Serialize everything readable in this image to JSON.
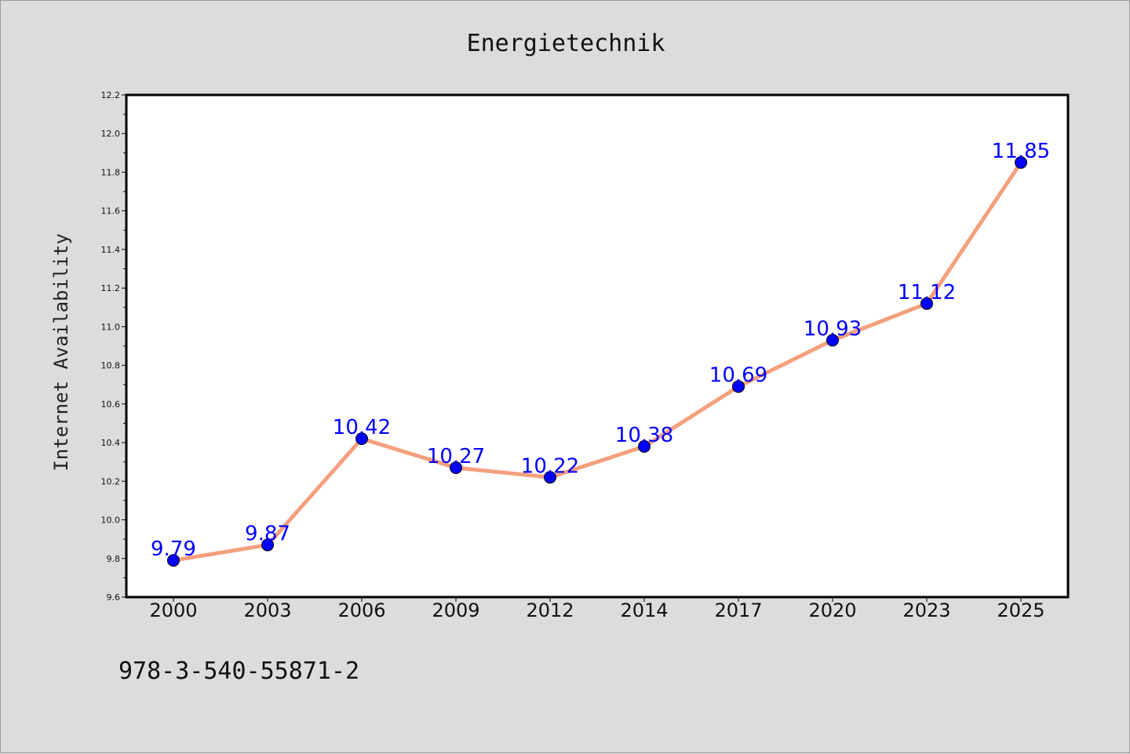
{
  "chart_data": {
    "type": "line",
    "title": "Energietechnik",
    "ylabel": "Internet Availability",
    "xlabel": "",
    "categories": [
      "2000",
      "2003",
      "2006",
      "2009",
      "2012",
      "2014",
      "2017",
      "2020",
      "2023",
      "2025"
    ],
    "series": [
      {
        "values": [
          9.79,
          9.87,
          10.42,
          10.27,
          10.22,
          10.38,
          10.69,
          10.93,
          11.12,
          11.85
        ],
        "data_labels": [
          "9.79",
          "9.87",
          "10.42",
          "10.27",
          "10.22",
          "10.38",
          "10.69",
          "10.93",
          "11.12",
          "11.85"
        ]
      }
    ],
    "ylim": [
      9.6,
      12.2
    ],
    "yticks": [
      "9.6",
      "9.8",
      "10.0",
      "10.2",
      "10.4",
      "10.6",
      "10.8",
      "11.0",
      "11.2",
      "11.4",
      "11.6",
      "11.8",
      "12.0",
      "12.2"
    ],
    "grid": false,
    "legend": "none",
    "colors": {
      "line": "#f4a07e",
      "marker": "#0000ff",
      "data_label": "#0000ff",
      "plot_background": "#ffffff",
      "figure_background": "#dcdcdc"
    }
  },
  "footnote": "978-3-540-55871-2"
}
